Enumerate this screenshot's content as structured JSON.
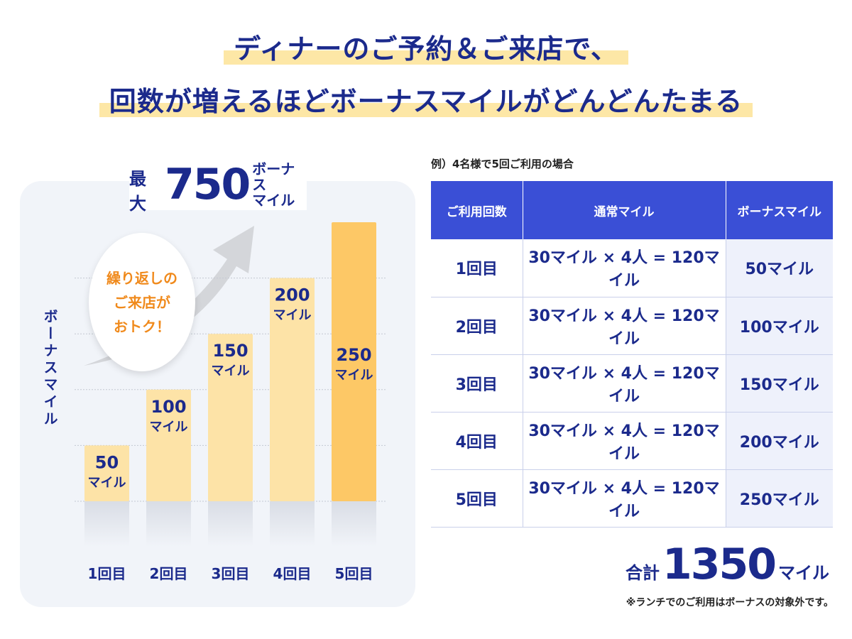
{
  "title": {
    "line1": "ディナーのご予約＆ご来店で、",
    "line2": "回数が増えるほどボーナスマイルがどんどんたまる"
  },
  "colors": {
    "navy": "#1b2a8c",
    "bar": "#fde3a7",
    "bar_highlight": "#fdc866",
    "header": "#3a4fd6",
    "accent": "#f08a1c"
  },
  "max": {
    "prefix": "最大",
    "value": "750",
    "unit_line1": "ボーナス",
    "unit_line2": "マイル"
  },
  "bubble": "繰り返しの\nご来店が\nおトク！",
  "chart_data": {
    "type": "bar",
    "ylabel": "ボーナスマイル",
    "categories": [
      "1回目",
      "2回目",
      "3回目",
      "4回目",
      "5回目"
    ],
    "values": [
      50,
      100,
      150,
      200,
      250
    ],
    "unit": "マイル",
    "ylim": [
      0,
      250
    ],
    "grid": true,
    "highlight_index": 4
  },
  "table": {
    "caption": "例）4名様で5回ご利用の場合",
    "headers": [
      "ご利用回数",
      "通常マイル",
      "ボーナスマイル"
    ],
    "rows": [
      {
        "count": "1回目",
        "normal": "30マイル × 4人 = 120マイル",
        "bonus": "50マイル"
      },
      {
        "count": "2回目",
        "normal": "30マイル × 4人 = 120マイル",
        "bonus": "100マイル"
      },
      {
        "count": "3回目",
        "normal": "30マイル × 4人 = 120マイル",
        "bonus": "150マイル"
      },
      {
        "count": "4回目",
        "normal": "30マイル × 4人 = 120マイル",
        "bonus": "200マイル"
      },
      {
        "count": "5回目",
        "normal": "30マイル × 4人 = 120マイル",
        "bonus": "250マイル"
      }
    ]
  },
  "total": {
    "label": "合計",
    "value": "1350",
    "unit": "マイル"
  },
  "note": "※ランチでのご利用はボーナスの対象外です。"
}
